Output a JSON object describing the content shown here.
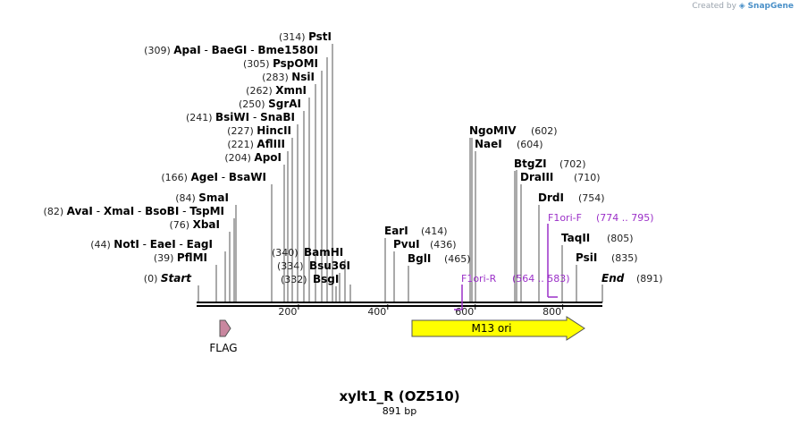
{
  "header": {
    "credit_prefix": "Created by",
    "credit_brand": "SnapGene"
  },
  "construct": {
    "name": "xylt1_R (OZ510)",
    "size_label": "891 bp",
    "length": 891
  },
  "axis": {
    "ticks": [
      200,
      400,
      600,
      800
    ],
    "start_label": "Start",
    "start_pos": "(0)",
    "end_label": "End",
    "end_pos": "(891)"
  },
  "sites": [
    {
      "row": 0,
      "line_at": 372,
      "pos": "(314)",
      "names": [
        "PstI"
      ]
    },
    {
      "row": 1,
      "line_at": 366,
      "pos": "(309)",
      "names": [
        "ApaI",
        "BaeGI",
        "Bme1580I"
      ]
    },
    {
      "row": 2,
      "line_at": 360,
      "pos": "(305)",
      "names": [
        "PspOMI"
      ]
    },
    {
      "row": 3,
      "line_at": 353,
      "pos": "(283)",
      "names": [
        "NsiI"
      ]
    },
    {
      "row": 4,
      "line_at": 346,
      "pos": "(262)",
      "names": [
        "XmnI"
      ]
    },
    {
      "row": 5,
      "line_at": 340,
      "pos": "(250)",
      "names": [
        "SgrAI"
      ]
    },
    {
      "row": 6,
      "line_at": 333,
      "pos": "(241)",
      "names": [
        "BsiWI",
        "SnaBI"
      ]
    },
    {
      "row": 7,
      "line_at": 327,
      "pos": "(227)",
      "names": [
        "HincII"
      ]
    },
    {
      "row": 8,
      "line_at": 322,
      "pos": "(221)",
      "names": [
        "AflIII"
      ]
    },
    {
      "row": 9,
      "line_at": 318,
      "pos": "(204)",
      "names": [
        "ApoI"
      ]
    },
    {
      "row": 10,
      "line_at": 304,
      "pos": "(166)",
      "names": [
        "AgeI",
        "BsaWI"
      ]
    },
    {
      "row": 11,
      "line_at": 264,
      "pos": "(84)",
      "names": [
        "SmaI"
      ]
    },
    {
      "row": 12,
      "line_at": 262,
      "pos": "(82)",
      "names": [
        "AvaI",
        "XmaI",
        "BsoBI",
        "TspMI"
      ]
    },
    {
      "row": 13,
      "line_at": 257,
      "pos": "(76)",
      "names": [
        "XbaI"
      ]
    },
    {
      "row": 14,
      "line_at": 252,
      "pos": "(44)",
      "names": [
        "NotI",
        "EaeI",
        "EagI"
      ]
    },
    {
      "row": 15,
      "line_at": 242,
      "pos": "(39)",
      "names": [
        "PflMI"
      ]
    },
    {
      "row": 16,
      "line_at": 222,
      "pos": "(0)",
      "names": [
        "Start"
      ]
    }
  ],
  "right_sites": [
    {
      "pos": "(602)",
      "names": [
        "NgoMIV"
      ]
    },
    {
      "pos": "(604)",
      "names": [
        "NaeI"
      ]
    },
    {
      "pos": "(702)",
      "names": [
        "BtgZI"
      ]
    },
    {
      "pos": "(710)",
      "names": [
        "DraIII"
      ]
    },
    {
      "pos": "(754)",
      "names": [
        "DrdI"
      ]
    },
    {
      "pos": "(805)",
      "names": [
        "TaqII"
      ]
    },
    {
      "pos": "(835)",
      "names": [
        "PsiI"
      ]
    }
  ],
  "mid_sites": [
    {
      "pos": "(414)",
      "names": [
        "EarI"
      ]
    },
    {
      "pos": "(436)",
      "names": [
        "PvuI"
      ]
    },
    {
      "pos": "(465)",
      "names": [
        "BglI"
      ]
    }
  ],
  "low_sites": [
    {
      "pos": "(340)",
      "names": [
        "BamHI"
      ]
    },
    {
      "pos": "(334)",
      "names": [
        "Bsu36I"
      ]
    },
    {
      "pos": "(332)",
      "names": [
        "BsgI"
      ]
    }
  ],
  "primers": [
    {
      "name": "F1ori-F",
      "range": "(774 .. 795)"
    },
    {
      "name": "F1ori-R",
      "range": "(564 .. 583)"
    }
  ],
  "features": [
    {
      "name": "FLAG",
      "color": "#c9879f"
    },
    {
      "name": "M13 ori",
      "color": "#ffff00"
    }
  ],
  "colors": {
    "primer": "#9b30c8",
    "line": "#000000",
    "site_line": "#555555"
  }
}
